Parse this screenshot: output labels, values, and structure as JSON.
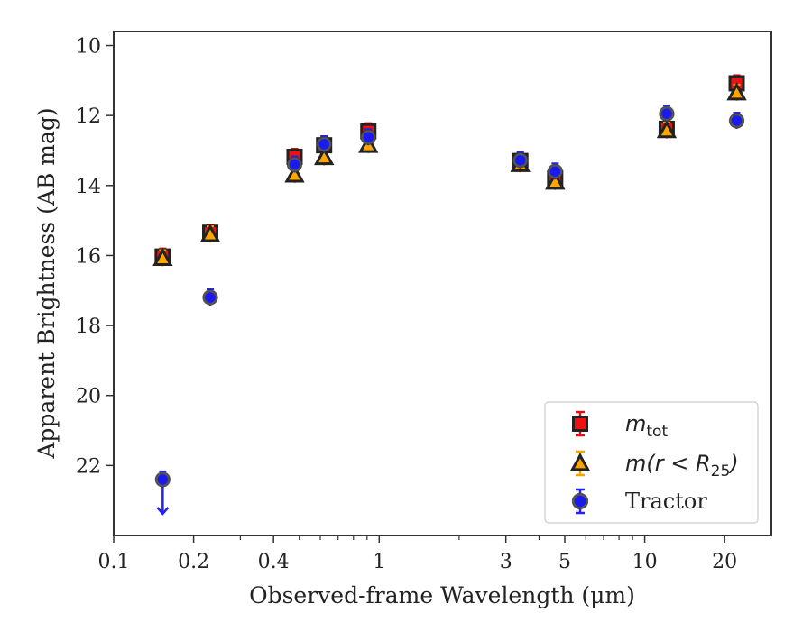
{
  "chart_data": {
    "type": "scatter",
    "xlabel": "Observed-frame Wavelength (μm)",
    "ylabel": "Apparent Brightness (AB mag)",
    "xscale": "log",
    "xlim": [
      0.1,
      30
    ],
    "ylim": [
      24,
      9.6
    ],
    "y_inverted": true,
    "xticks": [
      {
        "value": 0.1,
        "label": "0.1"
      },
      {
        "value": 0.2,
        "label": "0.2"
      },
      {
        "value": 0.4,
        "label": "0.4"
      },
      {
        "value": 1,
        "label": "1"
      },
      {
        "value": 3,
        "label": "3"
      },
      {
        "value": 5,
        "label": "5"
      },
      {
        "value": 10,
        "label": "10"
      },
      {
        "value": 20,
        "label": "20"
      }
    ],
    "yticks": [
      10,
      12,
      14,
      16,
      18,
      20,
      22
    ],
    "legend_position": "lower-right",
    "grid": false,
    "series": [
      {
        "name": "m_tot",
        "legend_main": "m",
        "legend_sub": "tot",
        "marker": "square",
        "color": "#ee1111",
        "errcolor": "#dd1111",
        "points": [
          {
            "x": 0.153,
            "y": 16.03
          },
          {
            "x": 0.231,
            "y": 15.35
          },
          {
            "x": 0.48,
            "y": 13.18
          },
          {
            "x": 0.62,
            "y": 12.85
          },
          {
            "x": 0.91,
            "y": 12.45
          },
          {
            "x": 3.4,
            "y": 13.3
          },
          {
            "x": 4.6,
            "y": 13.8
          },
          {
            "x": 12.1,
            "y": 12.38
          },
          {
            "x": 22.2,
            "y": 11.08
          }
        ]
      },
      {
        "name": "m(r < R_25)",
        "legend_main": "m(r < R",
        "legend_sub": "25",
        "legend_tail": ")",
        "marker": "triangle",
        "color": "#ffa500",
        "errcolor": "#f0a500",
        "points": [
          {
            "x": 0.153,
            "y": 16.08
          },
          {
            "x": 0.231,
            "y": 15.4
          },
          {
            "x": 0.48,
            "y": 13.7
          },
          {
            "x": 0.62,
            "y": 13.2
          },
          {
            "x": 0.91,
            "y": 12.85
          },
          {
            "x": 3.4,
            "y": 13.4
          },
          {
            "x": 4.6,
            "y": 13.9
          },
          {
            "x": 12.1,
            "y": 12.43
          },
          {
            "x": 22.2,
            "y": 11.35
          }
        ]
      },
      {
        "name": "Tractor",
        "legend_main": "Tractor",
        "marker": "circle",
        "color": "#1a1aee",
        "errcolor": "#2222ee",
        "points": [
          {
            "x": 0.153,
            "y": 22.4,
            "upper_limit": true
          },
          {
            "x": 0.231,
            "y": 17.2
          },
          {
            "x": 0.48,
            "y": 13.4
          },
          {
            "x": 0.62,
            "y": 12.82
          },
          {
            "x": 0.91,
            "y": 12.62
          },
          {
            "x": 3.4,
            "y": 13.28
          },
          {
            "x": 4.6,
            "y": 13.6
          },
          {
            "x": 12.1,
            "y": 11.95
          },
          {
            "x": 22.2,
            "y": 12.15
          }
        ]
      }
    ]
  }
}
